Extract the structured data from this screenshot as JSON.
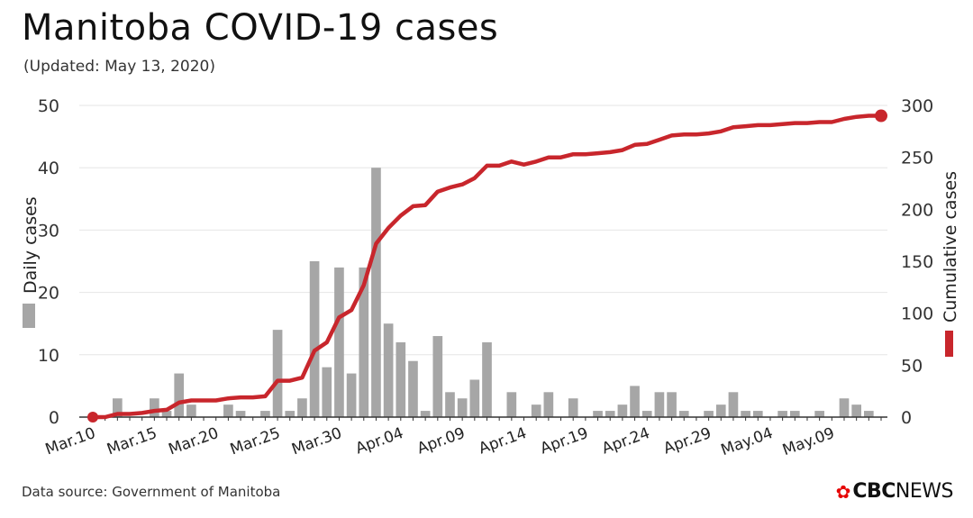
{
  "header": {
    "title": "Manitoba COVID-19 cases",
    "subtitle": "(Updated: May 13, 2020)"
  },
  "footer": {
    "source": "Data source: Government of Manitoba",
    "logo_bold": "CBC",
    "logo_light": "NEWS",
    "logo_icon": "cbc-gem-icon"
  },
  "colors": {
    "bars": "#a6a6a6",
    "line": "#c8262c",
    "grid": "#e6e6e6",
    "axis": "#333333"
  },
  "chart_data": {
    "type": "bar+line",
    "title": "Manitoba COVID-19 cases",
    "subtitle": "(Updated: May 13, 2020)",
    "xlabel": "",
    "ylabel_left": "Daily cases",
    "ylabel_right": "Cumulative cases",
    "ylim_left": [
      0,
      50
    ],
    "ylim_right": [
      0,
      300
    ],
    "yticks_left": [
      0,
      10,
      20,
      30,
      40,
      50
    ],
    "yticks_right": [
      0,
      50,
      100,
      150,
      200,
      250,
      300
    ],
    "grid": true,
    "legend": [
      {
        "name": "Daily cases",
        "marker": "bar",
        "placement": "left-axis"
      },
      {
        "name": "Cumulative cases",
        "marker": "line",
        "placement": "right-axis"
      }
    ],
    "xtick_labels": [
      "Mar.10",
      "Mar.15",
      "Mar.20",
      "Mar.25",
      "Mar.30",
      "Apr.04",
      "Apr.09",
      "Apr.14",
      "Apr.19",
      "Apr.24",
      "Apr.29",
      "May.04",
      "May.09"
    ],
    "xtick_every": 5,
    "dates": [
      "Mar.10",
      "Mar.11",
      "Mar.12",
      "Mar.13",
      "Mar.14",
      "Mar.15",
      "Mar.16",
      "Mar.17",
      "Mar.18",
      "Mar.19",
      "Mar.20",
      "Mar.21",
      "Mar.22",
      "Mar.23",
      "Mar.24",
      "Mar.25",
      "Mar.26",
      "Mar.27",
      "Mar.28",
      "Mar.29",
      "Mar.30",
      "Mar.31",
      "Apr.01",
      "Apr.02",
      "Apr.03",
      "Apr.04",
      "Apr.05",
      "Apr.06",
      "Apr.07",
      "Apr.08",
      "Apr.09",
      "Apr.10",
      "Apr.11",
      "Apr.12",
      "Apr.13",
      "Apr.14",
      "Apr.15",
      "Apr.16",
      "Apr.17",
      "Apr.18",
      "Apr.19",
      "Apr.20",
      "Apr.21",
      "Apr.22",
      "Apr.23",
      "Apr.24",
      "Apr.25",
      "Apr.26",
      "Apr.27",
      "Apr.28",
      "Apr.29",
      "Apr.30",
      "May.01",
      "May.02",
      "May.03",
      "May.04",
      "May.05",
      "May.06",
      "May.07",
      "May.08",
      "May.09",
      "May.10",
      "May.11",
      "May.12",
      "May.13"
    ],
    "series": [
      {
        "name": "Daily cases",
        "type": "bar",
        "axis": "left",
        "values": [
          0,
          0,
          3,
          0,
          0,
          3,
          1,
          7,
          2,
          0,
          0,
          2,
          1,
          0,
          1,
          14,
          1,
          3,
          25,
          8,
          24,
          7,
          24,
          40,
          15,
          12,
          9,
          1,
          13,
          4,
          3,
          6,
          12,
          0,
          4,
          0,
          2,
          4,
          0,
          3,
          0,
          1,
          1,
          2,
          5,
          1,
          4,
          4,
          1,
          0,
          1,
          2,
          4,
          1,
          1,
          0,
          1,
          1,
          0,
          1,
          0,
          3,
          2,
          1,
          0
        ]
      },
      {
        "name": "Cumulative cases",
        "type": "line",
        "axis": "right",
        "values": [
          0,
          0,
          3,
          3,
          4,
          6,
          7,
          14,
          16,
          16,
          16,
          18,
          19,
          19,
          20,
          35,
          35,
          38,
          64,
          72,
          96,
          103,
          127,
          167,
          182,
          194,
          203,
          204,
          217,
          221,
          224,
          230,
          242,
          242,
          246,
          243,
          246,
          250,
          250,
          253,
          253,
          254,
          255,
          257,
          262,
          263,
          267,
          271,
          272,
          272,
          273,
          275,
          279,
          280,
          281,
          281,
          282,
          283,
          283,
          284,
          284,
          287,
          289,
          290,
          290
        ]
      }
    ],
    "end_marker": {
      "date": "May.13",
      "value": 290
    }
  }
}
